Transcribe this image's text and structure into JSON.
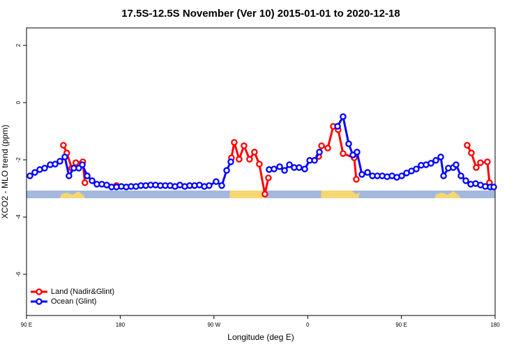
{
  "chart_data": {
    "type": "line",
    "title": "17.5S-12.5S November (Ver 10)   2015-01-01 to 2020-12-18",
    "x_label": "Longitude (deg E)",
    "y_label": "XCO2 - MLO trend (ppm)",
    "xlim": [
      90,
      540
    ],
    "ylim": [
      -7.44,
      2.61
    ],
    "xticks": [
      {
        "value": 90,
        "label": "90 E"
      },
      180,
      {
        "value": 270,
        "label": "90 W"
      },
      {
        "value": 360,
        "label": "0"
      },
      {
        "value": 450,
        "label": "90 E"
      },
      {
        "value": 540,
        "label": "180"
      }
    ],
    "yticks": [
      2,
      0,
      -2,
      -4,
      -6
    ],
    "legend": "bottomleft",
    "series": [
      {
        "name": "Land (Nadir&Glint)",
        "color": "#ff0000",
        "x": [
          125.4,
          128.7,
          133.4,
          137.4,
          144.1,
          146.1,
          150,
          176.4,
          178,
          286.8,
          289.5,
          294.2,
          298.9,
          304.2,
          308.9,
          313.6,
          318.9,
          322.3,
          330,
          370.6,
          373.3,
          379.3,
          384.6,
          389.3,
          394,
          404.7,
          406.7,
          420,
          513.2,
          517.2,
          521.9,
          525.9,
          532.6,
          534.6
        ],
        "values": [
          -1.49,
          -1.76,
          -2.29,
          -2.1,
          -2.07,
          -2.8,
          null,
          -2.9,
          null,
          -1.93,
          -1.39,
          -1.98,
          -1.51,
          -1.98,
          -1.73,
          -2.15,
          -3.2,
          -2.63,
          null,
          -1.88,
          -1.51,
          -1.59,
          -0.83,
          -0.95,
          -1.78,
          -1.93,
          -2.68,
          null,
          -1.49,
          -1.76,
          -2.27,
          -2.1,
          -2.07,
          -2.8
        ]
      },
      {
        "name": "Ocean (Glint)",
        "color": "#0000ff",
        "x": [
          93.3,
          98,
          102.7,
          107.4,
          112.8,
          117.5,
          122.1,
          126.8,
          130.8,
          135.5,
          140.2,
          143.6,
          148.3,
          153,
          157.6,
          162.3,
          167,
          171.7,
          176.4,
          181.1,
          185.8,
          190.4,
          195.1,
          199.8,
          204.5,
          209.2,
          213.9,
          218.6,
          223.3,
          227.9,
          232.6,
          237.3,
          242,
          246.7,
          251.4,
          256.1,
          260.8,
          265.4,
          272.1,
          277.5,
          282.2,
          286.2,
          300,
          323,
          327.7,
          333.1,
          337.8,
          342.5,
          347.1,
          351.8,
          357.2,
          361.9,
          366.6,
          371.3,
          380,
          388.7,
          394,
          399.4,
          403.4,
          407.4,
          412.1,
          417.5,
          422.2,
          426.9,
          431.6,
          436.3,
          441,
          445.6,
          450.3,
          455,
          459.7,
          464.3,
          469,
          473.7,
          478.4,
          483.1,
          487.8,
          490.5,
          495.1,
          499.8,
          502.5,
          507.2,
          511.9,
          516.6,
          521.3,
          526,
          530.6,
          535.3,
          538.7
        ],
        "values": [
          -2.56,
          -2.44,
          -2.34,
          -2.29,
          -2.17,
          -2.15,
          -2.05,
          -1.9,
          -2.56,
          -2.29,
          -2.29,
          -2.17,
          -2.56,
          -2.73,
          -2.85,
          -2.85,
          -2.88,
          -2.95,
          -2.95,
          -2.93,
          -2.95,
          -2.93,
          -2.93,
          -2.9,
          -2.9,
          -2.88,
          -2.88,
          -2.9,
          -2.9,
          -2.9,
          -2.93,
          -2.88,
          -2.93,
          -2.9,
          -2.9,
          -2.88,
          -2.93,
          -2.9,
          -2.76,
          -2.9,
          -2.37,
          -2.07,
          null,
          -2.34,
          -2.32,
          -2.24,
          -2.37,
          -2.17,
          -2.27,
          -2.27,
          -2.32,
          -2.02,
          -2.02,
          -1.73,
          null,
          -0.83,
          -0.49,
          -1.44,
          -1.83,
          -1.73,
          -2.51,
          -2.44,
          -2.56,
          -2.56,
          -2.56,
          -2.59,
          -2.56,
          -2.61,
          -2.56,
          -2.46,
          -2.39,
          -2.32,
          -2.19,
          -2.17,
          -2.12,
          -2.02,
          -1.9,
          -2.56,
          -2.29,
          -2.27,
          -2.17,
          -2.56,
          -2.73,
          -2.85,
          -2.83,
          -2.88,
          -2.93,
          -2.95,
          -2.95
        ]
      }
    ]
  }
}
